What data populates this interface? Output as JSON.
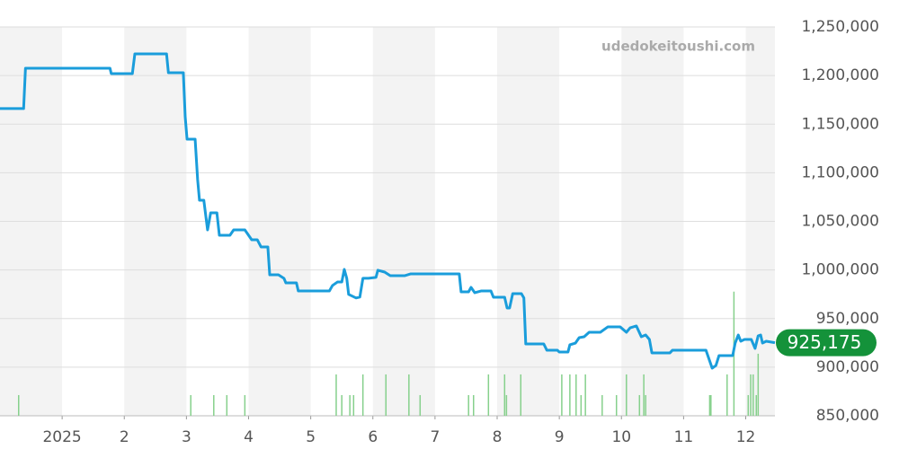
{
  "chart_data": {
    "type": "line",
    "watermark": "udedokeitoushi.com",
    "color": "#1a9ddb",
    "x": [
      0,
      0.38,
      0.41,
      1.77,
      1.79,
      2.13,
      2.17,
      2.68,
      2.71,
      2.95,
      2.98,
      3.01,
      3.14,
      3.18,
      3.21,
      3.28,
      3.34,
      3.39,
      3.49,
      3.53,
      3.7,
      3.76,
      3.94,
      4.05,
      4.14,
      4.2,
      4.31,
      4.34,
      4.48,
      4.57,
      4.6,
      4.77,
      4.8,
      5.3,
      5.35,
      5.43,
      5.5,
      5.54,
      5.58,
      5.61,
      5.73,
      5.79,
      5.84,
      5.93,
      6.05,
      6.08,
      6.19,
      6.28,
      6.51,
      6.61,
      6.8,
      7.39,
      7.42,
      7.54,
      7.58,
      7.64,
      7.74,
      7.9,
      7.94,
      8.12,
      8.16,
      8.2,
      8.25,
      8.39,
      8.43,
      8.46,
      8.75,
      8.8,
      8.97,
      9.0,
      9.14,
      9.17,
      9.26,
      9.32,
      9.4,
      9.48,
      9.66,
      9.78,
      9.98,
      10.08,
      10.14,
      10.24,
      10.32,
      10.39,
      10.45,
      10.49,
      10.78,
      10.82,
      11.36,
      11.4,
      11.46,
      11.52,
      11.57,
      11.79,
      11.83,
      11.88,
      11.92,
      11.98,
      12.09,
      12.15,
      12.2,
      12.24,
      12.27,
      12.33,
      12.47
    ],
    "values": [
      1166000,
      1166000,
      1207500,
      1207500,
      1202000,
      1202000,
      1222300,
      1222300,
      1202900,
      1202900,
      1157600,
      1134500,
      1134500,
      1093000,
      1071700,
      1071700,
      1041200,
      1058800,
      1058800,
      1035700,
      1035700,
      1041200,
      1041200,
      1031100,
      1031100,
      1023700,
      1023700,
      995000,
      995000,
      991300,
      986700,
      986700,
      978400,
      978400,
      984000,
      987600,
      987600,
      1000600,
      991300,
      974900,
      971200,
      972100,
      991500,
      991500,
      992400,
      999700,
      997800,
      994100,
      994100,
      996000,
      996000,
      996000,
      977500,
      977500,
      982100,
      976600,
      978400,
      978400,
      972000,
      972000,
      960900,
      960900,
      975600,
      975600,
      971200,
      923900,
      923900,
      917400,
      917400,
      915600,
      915600,
      923000,
      924800,
      930400,
      931300,
      935900,
      935900,
      941400,
      941400,
      935900,
      940500,
      942400,
      931300,
      933100,
      928500,
      914700,
      914700,
      917400,
      917400,
      910000,
      898950,
      901700,
      911900,
      911900,
      924800,
      933100,
      926700,
      928500,
      928500,
      919300,
      932200,
      933100,
      924800,
      926700,
      925175
    ],
    "last_label": "925,175",
    "badge_color": "#14923a",
    "volume": {
      "axis": "y2",
      "color": "#86d08c",
      "x": [
        0.3,
        3.07,
        3.44,
        3.65,
        3.94,
        5.41,
        5.5,
        5.63,
        5.69,
        5.84,
        6.21,
        6.58,
        6.76,
        7.54,
        7.62,
        7.86,
        8.12,
        8.15,
        8.38,
        9.04,
        9.17,
        9.27,
        9.35,
        9.42,
        9.69,
        9.92,
        10.08,
        10.29,
        10.36,
        10.39,
        11.42,
        11.44,
        11.7,
        11.81,
        12.04,
        12.08,
        12.12,
        12.17,
        12.2
      ],
      "values": [
        1,
        1,
        1,
        1,
        1,
        2,
        1,
        1,
        1,
        2,
        2,
        2,
        1,
        1,
        1,
        2,
        2,
        1,
        2,
        2,
        2,
        2,
        1,
        2,
        1,
        1,
        2,
        1,
        2,
        1,
        1,
        1,
        2,
        6,
        1,
        2,
        2,
        1,
        3
      ]
    },
    "xlim": [
      0,
      12.47
    ],
    "xticks": [
      {
        "value": 1,
        "label": "2025"
      },
      2,
      3,
      4,
      5,
      6,
      7,
      8,
      9,
      10,
      11,
      12
    ],
    "ylim": [
      850000,
      1250000
    ],
    "yticks": [
      {
        "value": 850000,
        "label": "850,000"
      },
      {
        "value": 900000,
        "label": "900,000"
      },
      {
        "value": 950000,
        "label": "950,000"
      },
      {
        "value": 1000000,
        "label": "1,000,000"
      },
      {
        "value": 1050000,
        "label": "1,050,000"
      },
      {
        "value": 1100000,
        "label": "1,100,000"
      },
      {
        "value": 1150000,
        "label": "1,150,000"
      },
      {
        "value": 1200000,
        "label": "1,200,000"
      },
      {
        "value": 1250000,
        "label": "1,250,000"
      }
    ],
    "y2lim": [
      0,
      18.8
    ],
    "grid": true
  }
}
